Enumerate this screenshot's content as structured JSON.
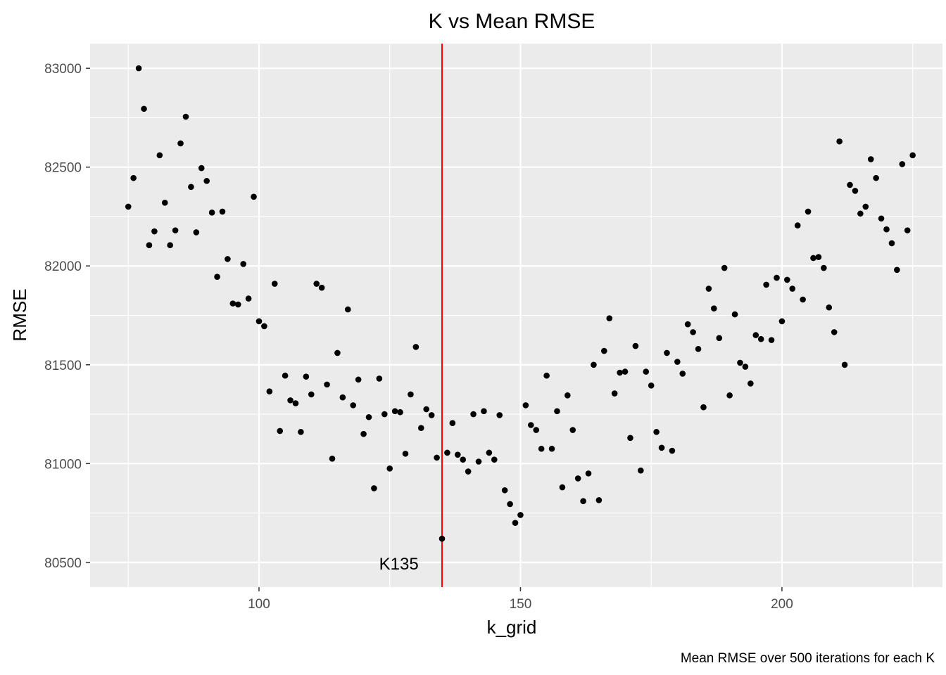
{
  "chart_data": {
    "type": "scatter",
    "title": "K vs Mean RMSE",
    "xlabel": "k_grid",
    "ylabel": "RMSE",
    "caption": "Mean RMSE over 500 iterations for each K",
    "xlim": [
      67.7,
      230.7
    ],
    "ylim": [
      80375,
      83125
    ],
    "x_ticks": [
      100,
      150,
      200
    ],
    "y_ticks": [
      80500,
      81000,
      81500,
      82000,
      82500,
      83000
    ],
    "grid": true,
    "panel_background": "#ebebeb",
    "point_color": "#000000",
    "vline": {
      "x": 135,
      "color": "#ff0000"
    },
    "annotation": {
      "text": "K135",
      "x": 125,
      "y": 80500
    },
    "x": [
      75,
      76,
      77,
      78,
      79,
      80,
      81,
      82,
      83,
      84,
      85,
      86,
      87,
      88,
      89,
      90,
      91,
      92,
      93,
      94,
      95,
      96,
      97,
      98,
      99,
      100,
      101,
      102,
      103,
      104,
      105,
      106,
      107,
      108,
      109,
      110,
      111,
      112,
      113,
      114,
      115,
      116,
      117,
      118,
      119,
      120,
      121,
      122,
      123,
      124,
      125,
      126,
      127,
      128,
      129,
      130,
      131,
      132,
      133,
      134,
      135,
      136,
      137,
      138,
      139,
      140,
      141,
      142,
      143,
      144,
      145,
      146,
      147,
      148,
      149,
      150,
      151,
      152,
      153,
      154,
      155,
      156,
      157,
      158,
      159,
      160,
      161,
      162,
      163,
      164,
      165,
      166,
      167,
      168,
      169,
      170,
      171,
      172,
      173,
      174,
      175,
      176,
      177,
      178,
      179,
      180,
      181,
      182,
      183,
      184,
      185,
      186,
      187,
      188,
      189,
      190,
      191,
      192,
      193,
      194,
      195,
      196,
      197,
      198,
      199,
      200,
      201,
      202,
      203,
      204,
      205,
      206,
      207,
      208,
      209,
      210,
      211,
      212,
      213,
      214,
      215,
      216,
      217,
      218,
      219,
      220,
      221,
      222,
      223,
      224,
      225
    ],
    "y": [
      82300,
      82445,
      83000,
      82795,
      82105,
      82175,
      82560,
      82320,
      82105,
      82180,
      82620,
      82755,
      82400,
      82170,
      82495,
      82430,
      82270,
      81945,
      82275,
      82035,
      81810,
      81805,
      82010,
      81835,
      82350,
      81720,
      81695,
      81365,
      81910,
      81165,
      81445,
      81320,
      81305,
      81160,
      81440,
      81350,
      81910,
      81890,
      81400,
      81025,
      81560,
      81335,
      81780,
      81295,
      81425,
      81150,
      81235,
      80875,
      81430,
      81250,
      80975,
      81265,
      81260,
      81050,
      81350,
      81590,
      81180,
      81275,
      81245,
      81030,
      80620,
      81055,
      81205,
      81045,
      81020,
      80960,
      81250,
      81010,
      81265,
      81055,
      81020,
      81245,
      80865,
      80795,
      80700,
      80740,
      81295,
      81195,
      81170,
      81075,
      81445,
      81075,
      81265,
      80880,
      81345,
      81170,
      80925,
      80810,
      80950,
      81500,
      80815,
      81570,
      81735,
      81355,
      81460,
      81465,
      81130,
      81595,
      80965,
      81465,
      81395,
      81160,
      81080,
      81560,
      81065,
      81515,
      81455,
      81705,
      81665,
      81580,
      81285,
      81885,
      81785,
      81635,
      81990,
      81345,
      81755,
      81510,
      81490,
      81405,
      81650,
      81630,
      81905,
      81625,
      81940,
      81720,
      81930,
      81885,
      82205,
      81830,
      82275,
      82040,
      82045,
      81990,
      81790,
      81665,
      82630,
      81500,
      82410,
      82380,
      82265,
      82300,
      82540,
      82445,
      82240,
      82185,
      82115,
      81980,
      82515,
      82180,
      82560
    ]
  }
}
